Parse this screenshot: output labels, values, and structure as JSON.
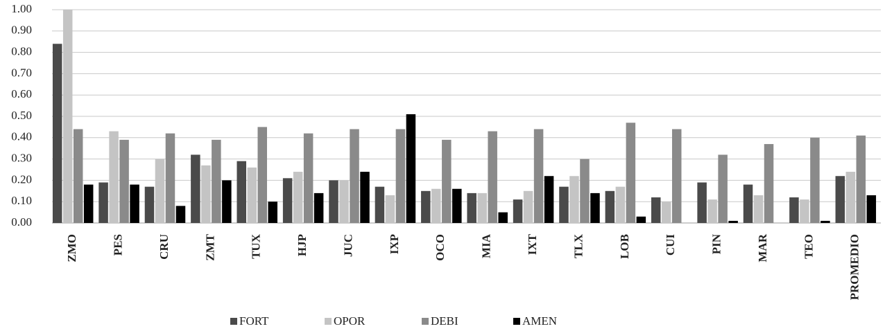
{
  "chart_data": {
    "type": "bar",
    "categories": [
      "ZMO",
      "PES",
      "CRU",
      "ZMT",
      "TUX",
      "HJP",
      "JUC",
      "IXP",
      "OCO",
      "MIA",
      "IXT",
      "TLX",
      "LOB",
      "CUI",
      "PIN",
      "MAR",
      "TEO",
      "PROMEDIO"
    ],
    "series": [
      {
        "name": "FORT",
        "color": "#4a4a4a",
        "values": [
          0.84,
          0.19,
          0.17,
          0.32,
          0.29,
          0.21,
          0.2,
          0.17,
          0.15,
          0.14,
          0.11,
          0.17,
          0.15,
          0.12,
          0.19,
          0.18,
          0.12,
          0.22
        ]
      },
      {
        "name": "OPOR",
        "color": "#c4c4c4",
        "values": [
          1.0,
          0.43,
          0.3,
          0.27,
          0.26,
          0.24,
          0.2,
          0.13,
          0.16,
          0.14,
          0.15,
          0.22,
          0.17,
          0.1,
          0.11,
          0.13,
          0.11,
          0.24
        ]
      },
      {
        "name": "DEBI",
        "color": "#8a8a8a",
        "values": [
          0.44,
          0.39,
          0.42,
          0.39,
          0.45,
          0.42,
          0.44,
          0.44,
          0.39,
          0.43,
          0.44,
          0.3,
          0.47,
          0.44,
          0.32,
          0.37,
          0.4,
          0.41
        ]
      },
      {
        "name": "AMEN",
        "color": "#000000",
        "values": [
          0.18,
          0.18,
          0.08,
          0.2,
          0.1,
          0.14,
          0.24,
          0.51,
          0.16,
          0.05,
          0.22,
          0.14,
          0.03,
          0.0,
          0.01,
          0.0,
          0.01,
          0.13
        ]
      }
    ],
    "ylim": [
      0,
      1
    ],
    "yticks": [
      {
        "value": 0,
        "label": "0.00"
      },
      {
        "value": 0.1,
        "label": "0.10"
      },
      {
        "value": 0.2,
        "label": "0.20"
      },
      {
        "value": 0.3,
        "label": "0.30"
      },
      {
        "value": 0.4,
        "label": "0.40"
      },
      {
        "value": 0.5,
        "label": "0.50"
      },
      {
        "value": 0.6,
        "label": "0.60"
      },
      {
        "value": 0.7,
        "label": "0.70"
      },
      {
        "value": 0.8,
        "label": "0.80"
      },
      {
        "value": 0.9,
        "label": "0.90"
      },
      {
        "value": 1,
        "label": "1.00"
      }
    ],
    "grid": true
  }
}
